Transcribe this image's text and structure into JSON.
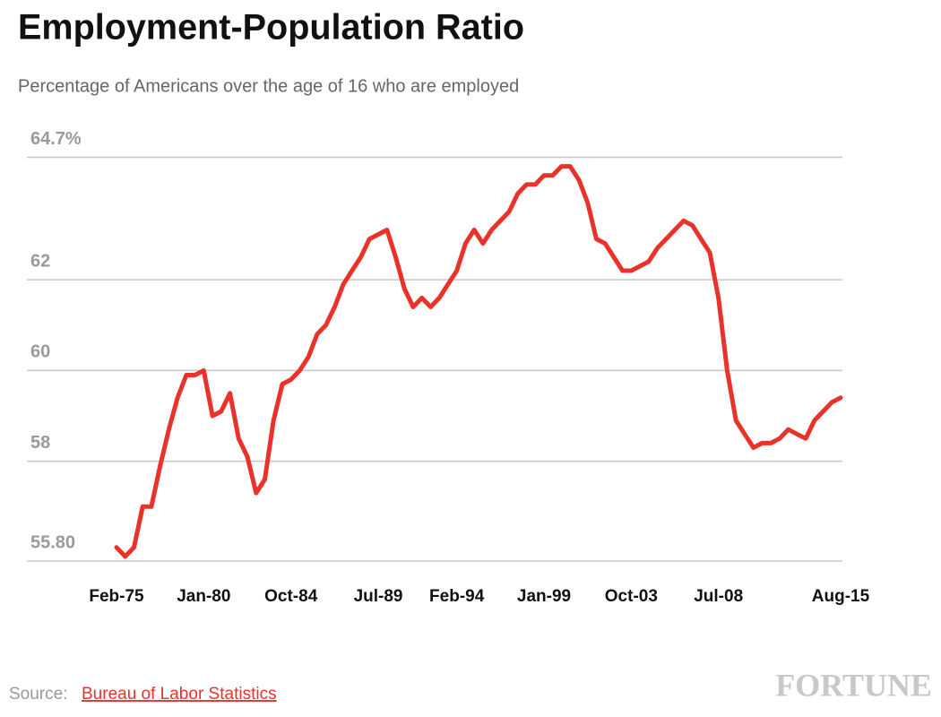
{
  "chart_data": {
    "type": "line",
    "title": "Employment-Population Ratio",
    "subtitle": "Percentage of Americans over the age of 16 who are employed",
    "source_label": "Source:",
    "source_link": "Bureau of Labor Statistics",
    "brand": "FORTUNE",
    "color": "#e8322a",
    "grid": true,
    "ylim": [
      55.8,
      64.7
    ],
    "yticks": [
      {
        "value": 55.8,
        "label": "55.80"
      },
      58,
      60,
      62,
      {
        "value": 64.7,
        "label": "64.7%"
      }
    ],
    "categories": [
      "Feb-75",
      null,
      null,
      null,
      null,
      null,
      null,
      null,
      null,
      null,
      "Jan-80",
      null,
      null,
      null,
      null,
      null,
      null,
      null,
      null,
      null,
      "Oct-84",
      null,
      null,
      null,
      null,
      null,
      null,
      null,
      null,
      null,
      "Jul-89",
      null,
      null,
      null,
      null,
      null,
      null,
      null,
      null,
      "Feb-94",
      null,
      null,
      null,
      null,
      null,
      null,
      null,
      null,
      null,
      "Jan-99",
      null,
      null,
      null,
      null,
      null,
      null,
      null,
      null,
      null,
      "Oct-03",
      null,
      null,
      null,
      null,
      null,
      null,
      null,
      null,
      null,
      "Jul-08",
      null,
      null,
      null,
      null,
      null,
      null,
      null,
      null,
      null,
      null,
      null,
      null,
      null,
      "Aug-15"
    ],
    "values": [
      56.1,
      55.9,
      56.1,
      57.0,
      57.0,
      57.9,
      58.7,
      59.4,
      59.9,
      59.9,
      60.0,
      59.0,
      59.1,
      59.5,
      58.5,
      58.1,
      57.3,
      57.6,
      58.9,
      59.7,
      59.8,
      60.0,
      60.3,
      60.8,
      61.0,
      61.4,
      61.9,
      62.2,
      62.5,
      62.9,
      63.0,
      63.1,
      62.5,
      61.8,
      61.4,
      61.6,
      61.4,
      61.6,
      61.9,
      62.2,
      62.8,
      63.1,
      62.8,
      63.1,
      63.3,
      63.5,
      63.9,
      64.1,
      64.1,
      64.3,
      64.3,
      64.5,
      64.5,
      64.2,
      63.7,
      62.9,
      62.8,
      62.5,
      62.2,
      62.2,
      62.3,
      62.4,
      62.7,
      62.9,
      63.1,
      63.3,
      63.2,
      62.9,
      62.6,
      61.6,
      60.0,
      58.9,
      58.6,
      58.3,
      58.4,
      58.4,
      58.5,
      58.7,
      58.6,
      58.5,
      58.9,
      59.1,
      59.3,
      59.4
    ]
  }
}
